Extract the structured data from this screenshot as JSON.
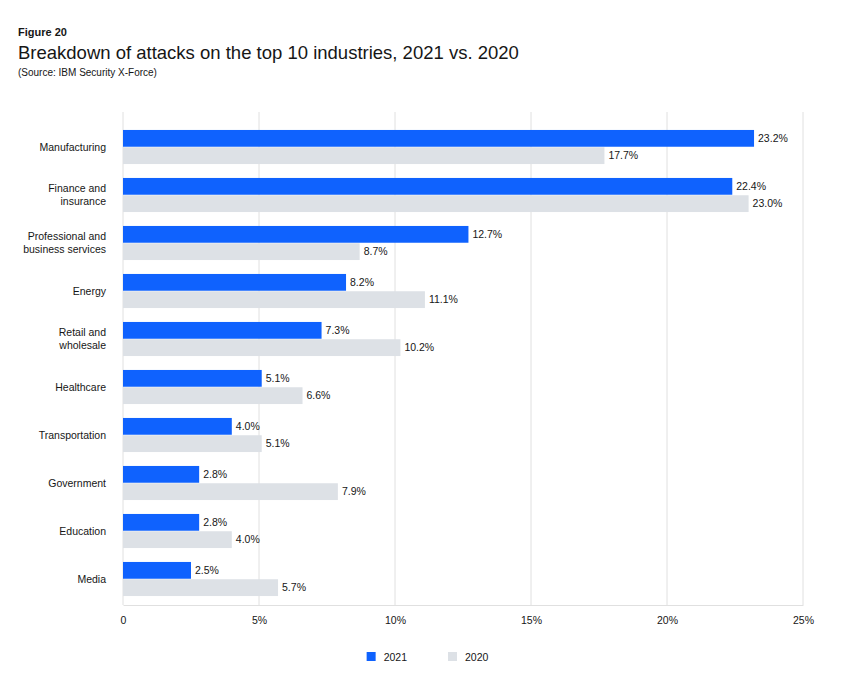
{
  "chart_data": {
    "type": "bar",
    "orientation": "horizontal",
    "annotations": [
      "Figure 20"
    ],
    "title": "Breakdown of attacks on the top 10 industries, 2021 vs. 2020",
    "subtitle": "(Source: IBM Security X-Force)",
    "categories": [
      "Manufacturing",
      "Finance and\ninsurance",
      "Professional and\nbusiness services",
      "Energy",
      "Retail and\nwholesale",
      "Healthcare",
      "Transportation",
      "Government",
      "Education",
      "Media"
    ],
    "series": [
      {
        "name": "2021",
        "color": "#0f62fe",
        "values": [
          23.2,
          22.4,
          12.7,
          8.2,
          7.3,
          5.1,
          4.0,
          2.8,
          2.8,
          2.5
        ],
        "value_labels": [
          "23.2%",
          "22.4%",
          "12.7%",
          "8.2%",
          "7.3%",
          "5.1%",
          "4.0%",
          "2.8%",
          "2.8%",
          "2.5%"
        ]
      },
      {
        "name": "2020",
        "color": "#dde1e6",
        "values": [
          17.7,
          23.0,
          8.7,
          11.1,
          10.2,
          6.6,
          5.1,
          7.9,
          4.0,
          5.7
        ],
        "value_labels": [
          "17.7%",
          "23.0%",
          "8.7%",
          "11.1%",
          "10.2%",
          "6.6%",
          "5.1%",
          "7.9%",
          "4.0%",
          "5.7%"
        ]
      }
    ],
    "xlim": [
      0,
      25
    ],
    "xticks": [
      0,
      {
        "value": 5,
        "label": "5%"
      },
      {
        "value": 10,
        "label": "10%"
      },
      {
        "value": 15,
        "label": "15%"
      },
      {
        "value": 20,
        "label": "20%"
      },
      {
        "value": 25,
        "label": "25%"
      }
    ],
    "grid": true,
    "data_labels": true,
    "legend": "bottom"
  }
}
